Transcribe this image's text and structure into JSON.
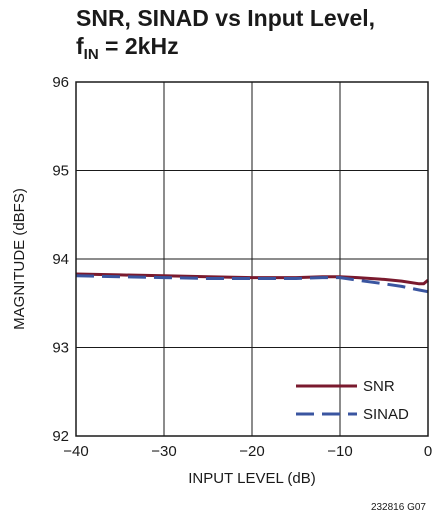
{
  "chart_data": {
    "type": "line",
    "title_line1": "SNR, SINAD vs Input Level,",
    "title_line2_main": "f",
    "title_line2_sub": "IN",
    "title_line2_rest": " = 2kHz",
    "xlabel": "INPUT LEVEL (dB)",
    "ylabel": "MAGNITUDE (dBFS)",
    "xlim": [
      -40,
      0
    ],
    "ylim": [
      92,
      96
    ],
    "xticks": [
      -40,
      -30,
      -20,
      -10,
      0
    ],
    "xtick_labels": [
      "−40",
      "−30",
      "−20",
      "−10",
      "0"
    ],
    "yticks": [
      92,
      93,
      94,
      95,
      96
    ],
    "ytick_labels": [
      "92",
      "93",
      "94",
      "95",
      "96"
    ],
    "grid": true,
    "legend_position": "bottom-right",
    "series": [
      {
        "name": "SNR",
        "color": "#7a1a2e",
        "style": "solid",
        "x": [
          -40,
          -35,
          -30,
          -25,
          -20,
          -15,
          -12,
          -10,
          -8,
          -5,
          -3,
          -1,
          -0.5,
          0
        ],
        "y": [
          93.83,
          93.82,
          93.81,
          93.8,
          93.79,
          93.79,
          93.8,
          93.8,
          93.79,
          93.77,
          93.75,
          93.72,
          93.72,
          93.76
        ]
      },
      {
        "name": "SINAD",
        "color": "#3a55a0",
        "style": "dashed",
        "x": [
          -40,
          -35,
          -30,
          -25,
          -20,
          -15,
          -12,
          -10,
          -8,
          -5,
          -3,
          -1,
          0
        ],
        "y": [
          93.81,
          93.8,
          93.79,
          93.78,
          93.78,
          93.78,
          93.79,
          93.79,
          93.76,
          93.72,
          93.69,
          93.65,
          93.63
        ]
      }
    ]
  },
  "footnote": "232816 G07"
}
